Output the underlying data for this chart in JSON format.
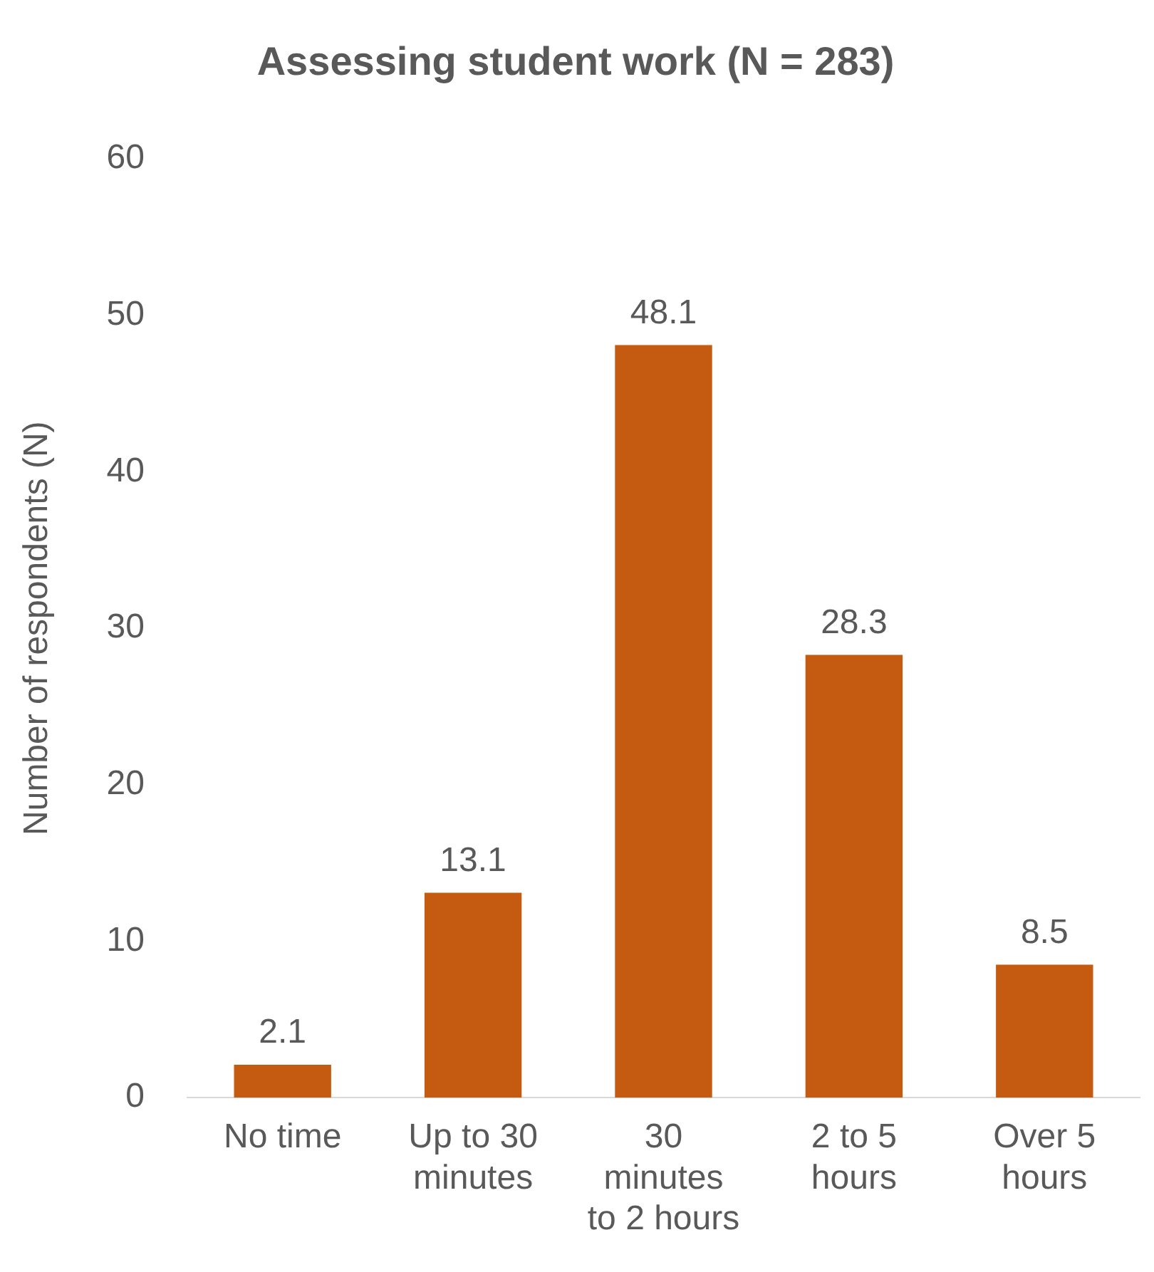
{
  "chart_data": {
    "type": "bar",
    "title": "Assessing student work (N = 283)",
    "ylabel": "Number of respondents (N)",
    "categories": [
      "No time",
      "Up to 30 minutes",
      "30 minutes to 2 hours",
      "2 to 5 hours",
      "Over 5 hours"
    ],
    "values": [
      2.1,
      13.1,
      48.1,
      28.3,
      8.5
    ],
    "color": "#c55a11",
    "ylim": [
      0,
      60
    ],
    "yticks": [
      0,
      10,
      20,
      30,
      40,
      50,
      60
    ],
    "grid": false,
    "legend": false,
    "data_labels": true
  }
}
